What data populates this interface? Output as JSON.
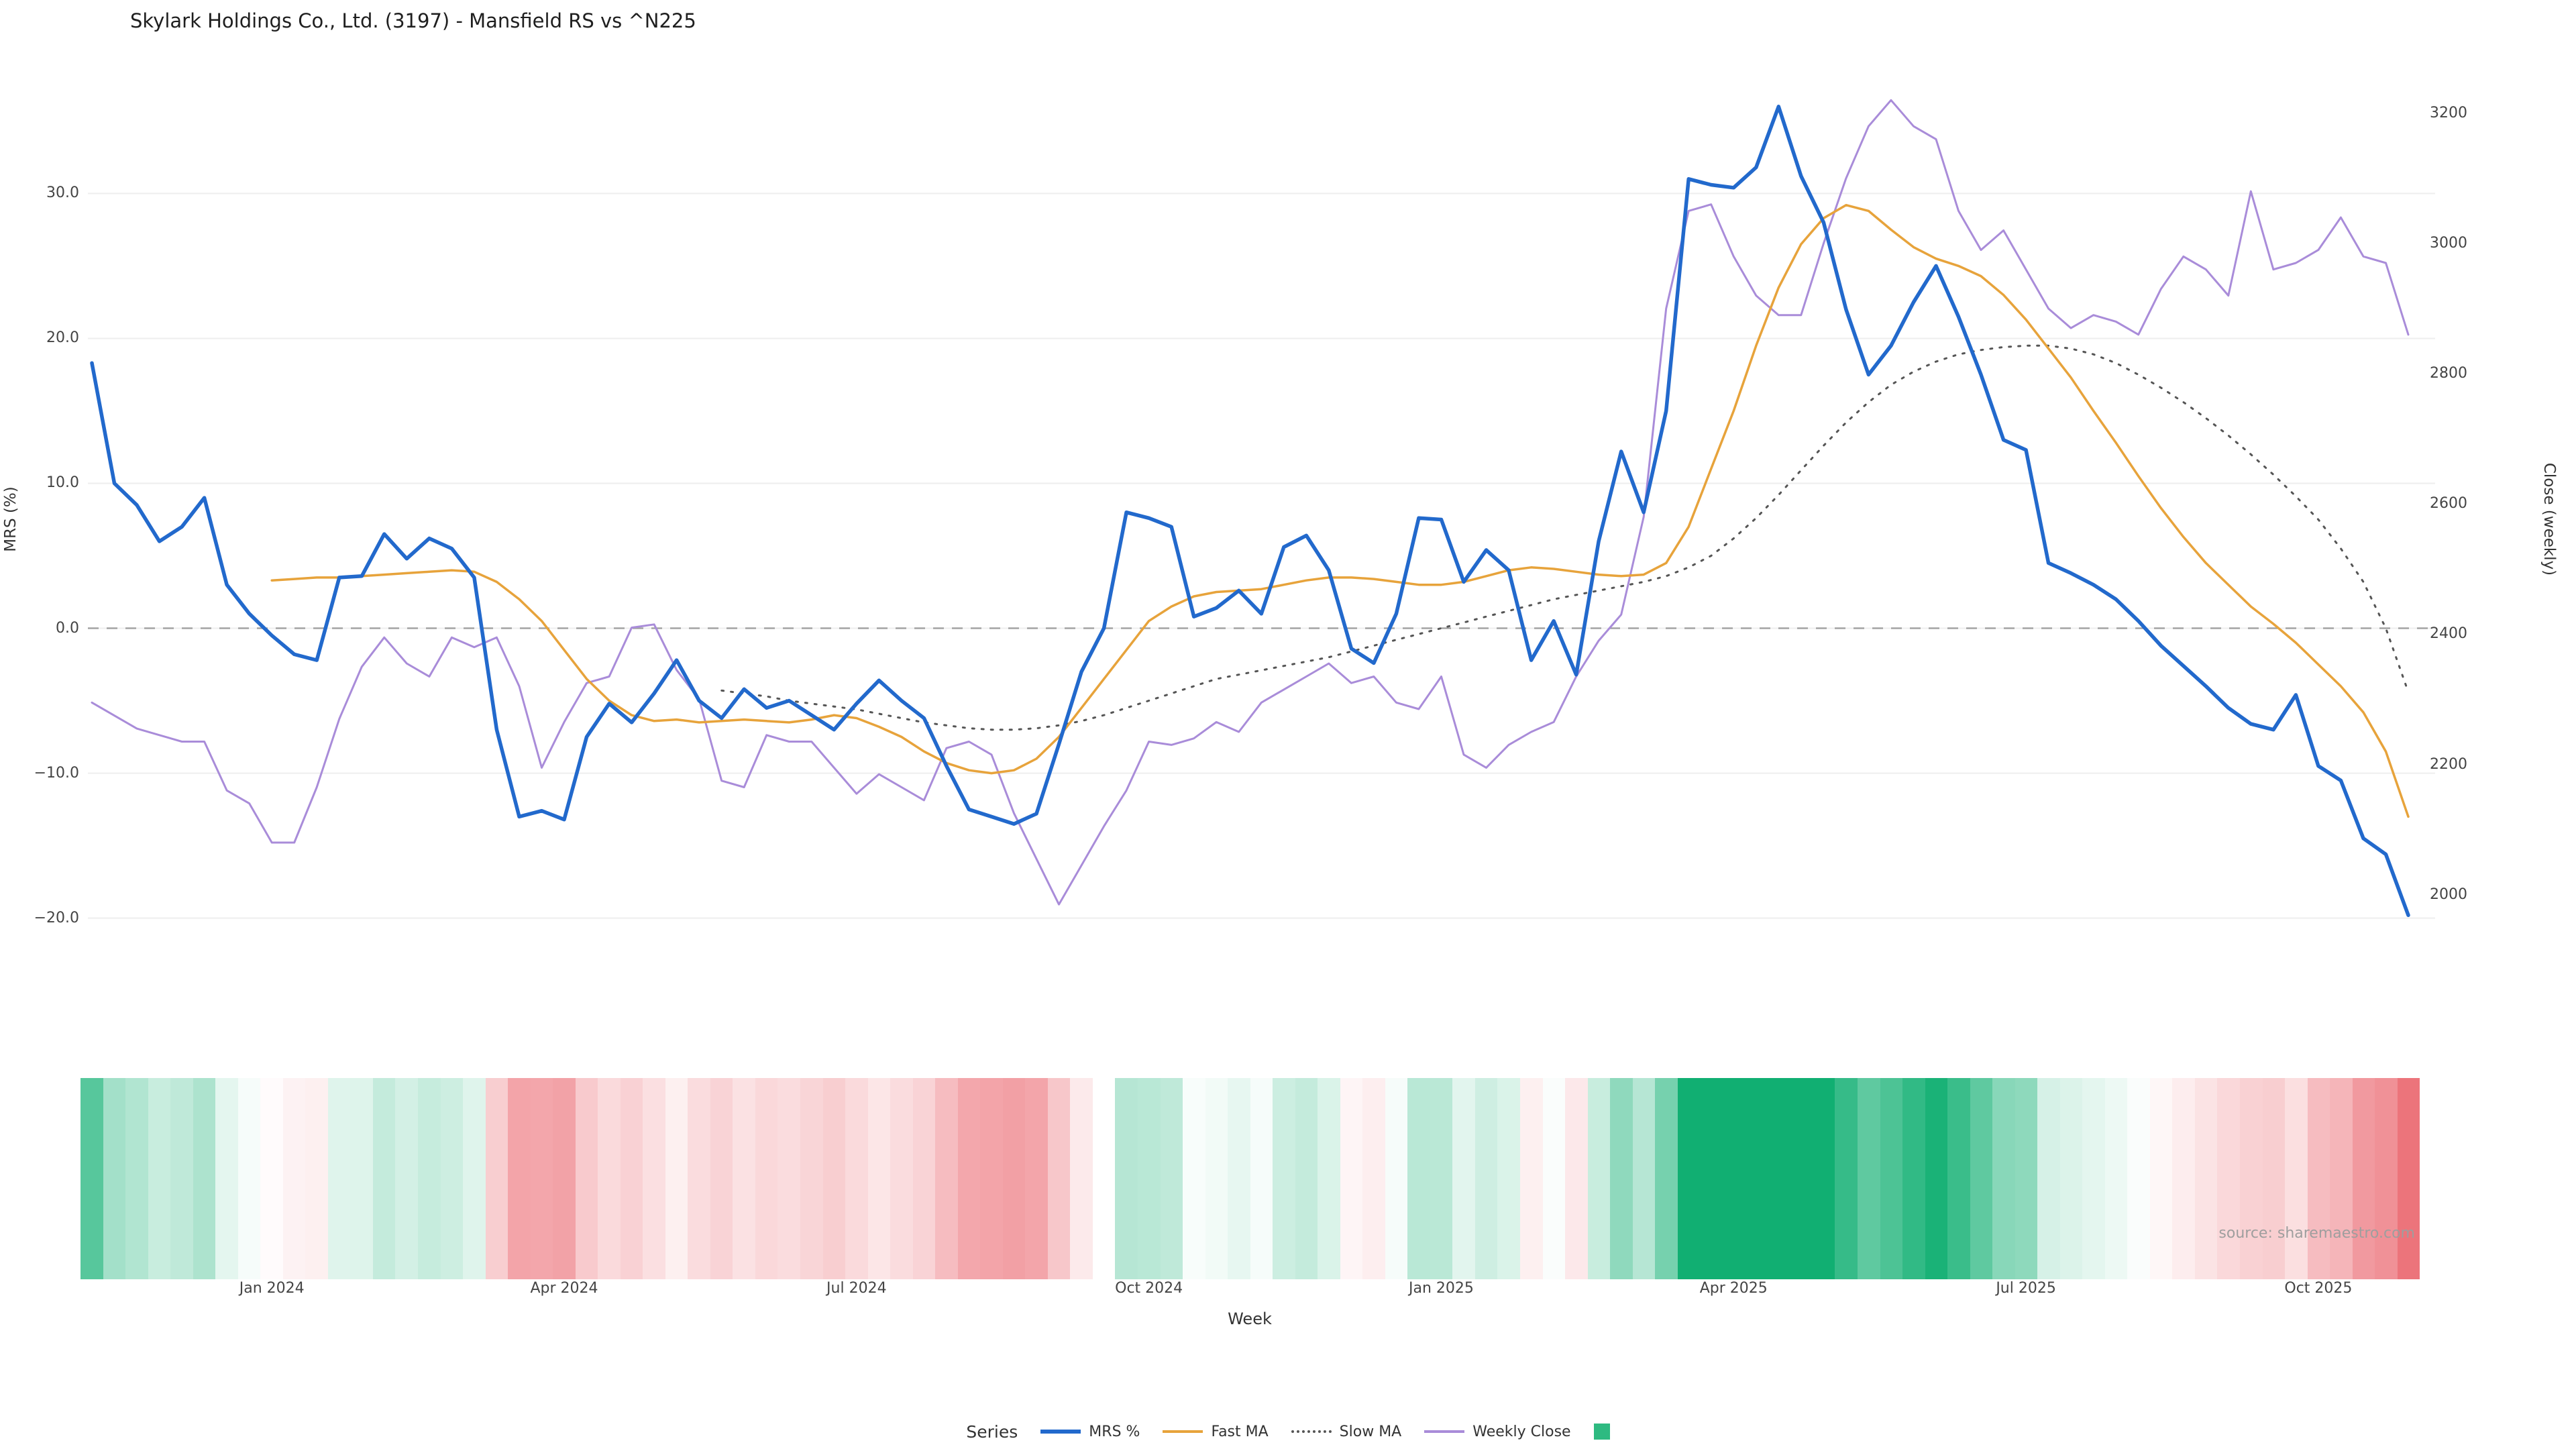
{
  "title": "Skylark Holdings Co., Ltd. (3197) - Mansfield RS vs ^N225",
  "source_note": "source: sharemaestro.com",
  "legend": {
    "title": "Series",
    "items": [
      {
        "label": "MRS %",
        "swatch": "line",
        "color": "#2269cc",
        "style": "solid",
        "thickness": 6
      },
      {
        "label": "Fast MA",
        "swatch": "line",
        "color": "#e7a33b",
        "style": "solid",
        "thickness": 4
      },
      {
        "label": "Slow MA",
        "swatch": "line",
        "color": "#555555",
        "style": "dotted",
        "thickness": 4
      },
      {
        "label": "Weekly Close",
        "swatch": "line",
        "color": "#a98cd9",
        "style": "solid",
        "thickness": 4
      },
      {
        "label": "",
        "swatch": "square",
        "color": "#2eba81",
        "style": "solid",
        "thickness": 0
      }
    ]
  },
  "colors": {
    "background": "#ffffff",
    "grid": "#eeeeee",
    "zero_line": "#a3a3a3",
    "mrs": "#2269cc",
    "fast_ma": "#e7a33b",
    "slow_ma": "#555555",
    "weekly_close": "#a98cd9",
    "heatmap_positive": "#11af72",
    "heatmap_negative": "#e64852"
  },
  "chart_data": {
    "type": "line",
    "title": "Skylark Holdings Co., Ltd. (3197) - Mansfield RS vs ^N225",
    "x": {
      "label": "Week",
      "unit": "weekly index (Nov 2023 - Nov 2025)",
      "count": 104,
      "tick_indices": [
        8,
        21,
        34,
        47,
        60,
        73,
        86,
        99
      ],
      "tick_labels": [
        "Jan 2024",
        "Apr 2024",
        "Jul 2024",
        "Oct 2024",
        "Jan 2025",
        "Apr 2025",
        "Jul 2025",
        "Oct 2025"
      ]
    },
    "y_left": {
      "label": "MRS (%)",
      "tick_values": [
        30,
        20,
        10,
        0,
        -10,
        -20
      ],
      "tick_labels": [
        "30.0",
        "20.0",
        "10.0",
        "0.0",
        "−10.0",
        "−20.0"
      ],
      "range": [
        -24,
        39
      ],
      "zero_line_dashed": true
    },
    "y_right": {
      "label": "Close (weekly)",
      "tick_values": [
        3200,
        3000,
        2800,
        2600,
        2400,
        2200,
        2000
      ],
      "tick_labels": [
        "3200",
        "3000",
        "2800",
        "2600",
        "2400",
        "2200",
        "2000"
      ],
      "range": [
        1875,
        3277
      ]
    },
    "series": [
      {
        "name": "MRS %",
        "axis": "left",
        "color": "#2269cc",
        "width": 5.5,
        "dash": null,
        "start_index": 0,
        "values": [
          18.3,
          10.0,
          8.5,
          6.0,
          7.0,
          9.0,
          3.0,
          1.0,
          -0.5,
          -1.8,
          -2.2,
          3.5,
          3.6,
          6.5,
          4.8,
          6.2,
          5.5,
          3.5,
          -7.0,
          -13.0,
          -12.6,
          -13.2,
          -7.5,
          -5.2,
          -6.5,
          -4.5,
          -2.2,
          -5.0,
          -6.2,
          -4.2,
          -5.5,
          -5.0,
          -6.0,
          -7.0,
          -5.2,
          -3.6,
          -5.0,
          -6.2,
          -9.5,
          -12.5,
          -13.0,
          -13.5,
          -12.8,
          -8.0,
          -3.0,
          0.0,
          8.0,
          7.6,
          7.0,
          0.8,
          1.4,
          2.6,
          1.0,
          5.6,
          6.4,
          4.0,
          -1.4,
          -2.4,
          1.0,
          7.6,
          7.5,
          3.2,
          5.4,
          4.0,
          -2.2,
          0.5,
          -3.2,
          6.0,
          12.2,
          8.0,
          15.0,
          31.0,
          30.6,
          30.4,
          31.8,
          36.0,
          31.2,
          28.0,
          22.0,
          17.5,
          19.5,
          22.5,
          25.0,
          21.5,
          17.5,
          13.0,
          12.3,
          4.5,
          3.8,
          3.0,
          2.0,
          0.5,
          -1.2,
          -2.6,
          -4.0,
          -5.5,
          -6.6,
          -7.0,
          -4.6,
          -9.5,
          -10.5,
          -14.5,
          -15.6,
          -19.8
        ]
      },
      {
        "name": "Fast MA",
        "axis": "left",
        "color": "#e7a33b",
        "width": 3.5,
        "dash": null,
        "start_index": 8,
        "values": [
          3.3,
          3.4,
          3.5,
          3.5,
          3.6,
          3.7,
          3.8,
          3.9,
          4.0,
          3.9,
          3.2,
          2.0,
          0.5,
          -1.5,
          -3.5,
          -5.0,
          -6.0,
          -6.4,
          -6.3,
          -6.5,
          -6.4,
          -6.3,
          -6.4,
          -6.5,
          -6.3,
          -6.0,
          -6.2,
          -6.8,
          -7.5,
          -8.5,
          -9.3,
          -9.8,
          -10.0,
          -9.8,
          -9.0,
          -7.5,
          -5.5,
          -3.5,
          -1.5,
          0.5,
          1.5,
          2.2,
          2.5,
          2.6,
          2.7,
          3.0,
          3.3,
          3.5,
          3.5,
          3.4,
          3.2,
          3.0,
          3.0,
          3.2,
          3.6,
          4.0,
          4.2,
          4.1,
          3.9,
          3.7,
          3.6,
          3.7,
          4.5,
          7.0,
          11.0,
          15.0,
          19.5,
          23.5,
          26.5,
          28.3,
          29.2,
          28.8,
          27.5,
          26.3,
          25.5,
          25.0,
          24.3,
          23.0,
          21.3,
          19.3,
          17.3,
          15.0,
          12.8,
          10.5,
          8.3,
          6.3,
          4.5,
          3.0,
          1.5,
          0.3,
          -1.0,
          -2.5,
          -4.0,
          -5.8,
          -8.5,
          -13.0
        ]
      },
      {
        "name": "Slow MA",
        "axis": "left",
        "color": "#555555",
        "width": 3,
        "dash": "3,11",
        "start_index": 28,
        "values": [
          -4.3,
          -4.5,
          -4.7,
          -5.0,
          -5.2,
          -5.4,
          -5.6,
          -5.9,
          -6.2,
          -6.5,
          -6.7,
          -6.9,
          -7.0,
          -7.0,
          -6.9,
          -6.7,
          -6.4,
          -6.0,
          -5.5,
          -5.0,
          -4.5,
          -4.0,
          -3.5,
          -3.2,
          -2.9,
          -2.6,
          -2.3,
          -2.0,
          -1.6,
          -1.2,
          -0.8,
          -0.4,
          0.0,
          0.4,
          0.8,
          1.2,
          1.6,
          2.0,
          2.3,
          2.6,
          2.9,
          3.2,
          3.6,
          4.2,
          5.0,
          6.2,
          7.6,
          9.2,
          10.9,
          12.6,
          14.2,
          15.6,
          16.8,
          17.7,
          18.4,
          18.9,
          19.2,
          19.4,
          19.5,
          19.5,
          19.3,
          18.9,
          18.3,
          17.5,
          16.6,
          15.6,
          14.5,
          13.3,
          12.0,
          10.6,
          9.1,
          7.5,
          5.5,
          3.2,
          0.0,
          -4.4
        ]
      },
      {
        "name": "Weekly Close",
        "axis": "right",
        "color": "#a98cd9",
        "width": 3,
        "dash": null,
        "start_index": 0,
        "values": [
          2295,
          2275,
          2255,
          2245,
          2235,
          2235,
          2160,
          2140,
          2080,
          2080,
          2165,
          2270,
          2350,
          2395,
          2355,
          2335,
          2395,
          2380,
          2395,
          2320,
          2195,
          2265,
          2325,
          2335,
          2410,
          2415,
          2345,
          2300,
          2175,
          2165,
          2245,
          2235,
          2235,
          2195,
          2155,
          2185,
          2165,
          2145,
          2225,
          2235,
          2215,
          2125,
          2055,
          1985,
          2045,
          2105,
          2160,
          2235,
          2230,
          2240,
          2265,
          2250,
          2295,
          2315,
          2335,
          2355,
          2325,
          2335,
          2295,
          2285,
          2335,
          2215,
          2195,
          2230,
          2250,
          2265,
          2335,
          2390,
          2430,
          2580,
          2900,
          3050,
          3060,
          2980,
          2920,
          2890,
          2890,
          3000,
          3100,
          3180,
          3220,
          3180,
          3160,
          3050,
          2990,
          3020,
          2960,
          2900,
          2870,
          2890,
          2880,
          2860,
          2930,
          2980,
          2960,
          2920,
          3080,
          2960,
          2970,
          2990,
          3040,
          2980,
          2970,
          2860
        ]
      }
    ],
    "heatmap": {
      "basis": "MRS %",
      "description": "diverging strip below chart: green = positive MRS, red = negative MRS, white near zero",
      "positive_color": "#11af72",
      "negative_color": "#e64852",
      "neutral_color": "#ffffff",
      "saturation_cap": 26
    }
  }
}
